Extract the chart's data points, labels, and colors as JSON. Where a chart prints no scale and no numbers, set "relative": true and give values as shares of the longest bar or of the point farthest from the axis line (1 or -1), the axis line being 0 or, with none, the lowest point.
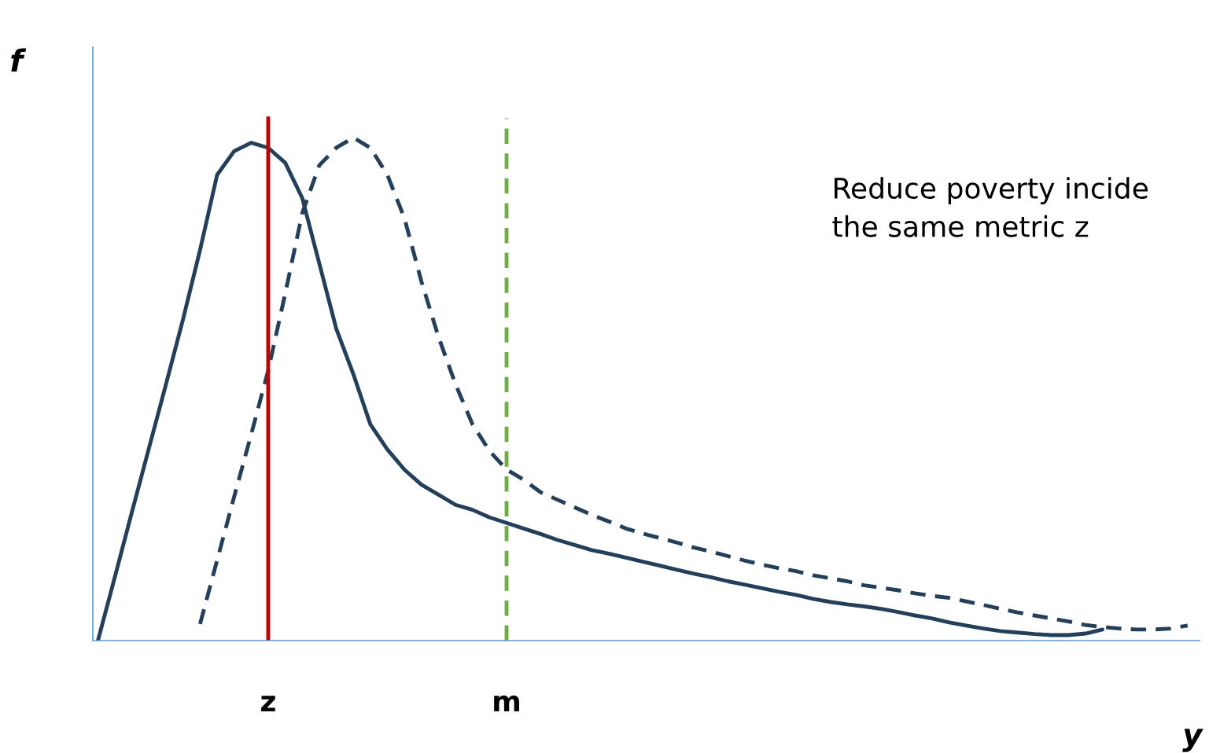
{
  "chart_data": {
    "type": "line",
    "relative": true,
    "xlabel": "y",
    "ylabel": "f",
    "categories": [
      null,
      null,
      null,
      null,
      null,
      null,
      null,
      null,
      null,
      null,
      "z",
      null,
      null,
      null,
      null,
      null,
      null,
      null,
      null,
      null,
      null,
      null,
      null,
      null,
      "m",
      null,
      null,
      null,
      null,
      null,
      null,
      null,
      null,
      null,
      null,
      null,
      null,
      null,
      null,
      null,
      null,
      null,
      null,
      null,
      null,
      null,
      null,
      null,
      null,
      null,
      null,
      null,
      null,
      null,
      null,
      null,
      null,
      null,
      null,
      null,
      null,
      null,
      null,
      null,
      null
    ],
    "series": [
      {
        "color": "#243f5a",
        "line_style": "solid",
        "values": [
          0,
          0.127,
          0.256,
          0.383,
          0.51,
          0.639,
          0.777,
          0.926,
          0.973,
          0.99,
          0.98,
          0.95,
          0.88,
          0.75,
          0.62,
          0.53,
          0.43,
          0.38,
          0.34,
          0.31,
          0.29,
          0.27,
          0.26,
          0.245,
          0.234,
          0.223,
          0.212,
          0.2,
          0.19,
          0.18,
          0.173,
          0.165,
          0.157,
          0.149,
          0.141,
          0.133,
          0.126,
          0.118,
          0.111,
          0.104,
          0.097,
          0.091,
          0.083,
          0.077,
          0.072,
          0.068,
          0.063,
          0.057,
          0.05,
          0.044,
          0.036,
          0.03,
          0.024,
          0.019,
          0.016,
          0.013,
          0.011,
          0.011,
          0.014,
          0.022,
          null,
          null,
          null,
          null,
          null
        ]
      },
      {
        "color": "#243f5a",
        "line_style": "dashed",
        "values": [
          null,
          null,
          null,
          null,
          null,
          null,
          0.033,
          0.16,
          0.286,
          0.41,
          0.537,
          0.69,
          0.85,
          0.945,
          0.98,
          1,
          0.98,
          0.926,
          0.84,
          0.714,
          0.604,
          0.51,
          0.43,
          0.377,
          0.34,
          0.32,
          0.295,
          0.28,
          0.265,
          0.25,
          0.237,
          0.223,
          0.213,
          0.204,
          0.195,
          0.185,
          0.177,
          0.168,
          0.159,
          0.151,
          0.144,
          0.138,
          0.13,
          0.124,
          0.118,
          0.11,
          0.105,
          0.1,
          0.094,
          0.089,
          0.085,
          0.078,
          0.071,
          0.063,
          0.056,
          0.05,
          0.044,
          0.038,
          0.031,
          0.027,
          0.024,
          0.022,
          0.022,
          0.024,
          0.03
        ]
      }
    ],
    "ref_lines": [
      {
        "axis": "x",
        "value": "z",
        "color": "#c00000",
        "line_style": "solid"
      },
      {
        "axis": "x",
        "value": "m",
        "color": "#70ad47",
        "line_style": "dashed"
      }
    ],
    "annotations": [
      "Reduce poverty incide\nthe same metric z"
    ],
    "legend": false,
    "grid": false
  }
}
